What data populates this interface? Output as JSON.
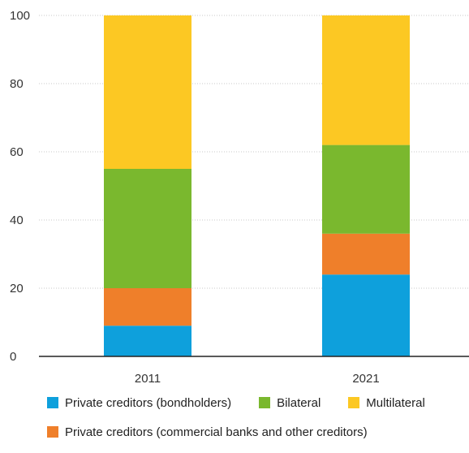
{
  "chart_data": {
    "type": "bar",
    "stacked": true,
    "categories": [
      "2011",
      "2021"
    ],
    "series": [
      {
        "name": "Private creditors (bondholders)",
        "color": "#0ea0dc",
        "values": [
          9,
          24
        ]
      },
      {
        "name": "Private creditors (commercial banks and other creditors)",
        "color": "#ef7f2a",
        "values": [
          11,
          12
        ]
      },
      {
        "name": "Bilateral",
        "color": "#7ab82e",
        "values": [
          35,
          26
        ]
      },
      {
        "name": "Multilateral",
        "color": "#fcc823",
        "values": [
          45,
          38
        ]
      }
    ],
    "yticks": [
      "0",
      "20",
      "40",
      "60",
      "80",
      "100"
    ],
    "ylim": [
      0,
      100
    ],
    "grid": true,
    "title": "",
    "xlabel": "",
    "ylabel": ""
  },
  "legend_rows": [
    [
      0,
      2,
      3
    ],
    [
      1
    ]
  ]
}
